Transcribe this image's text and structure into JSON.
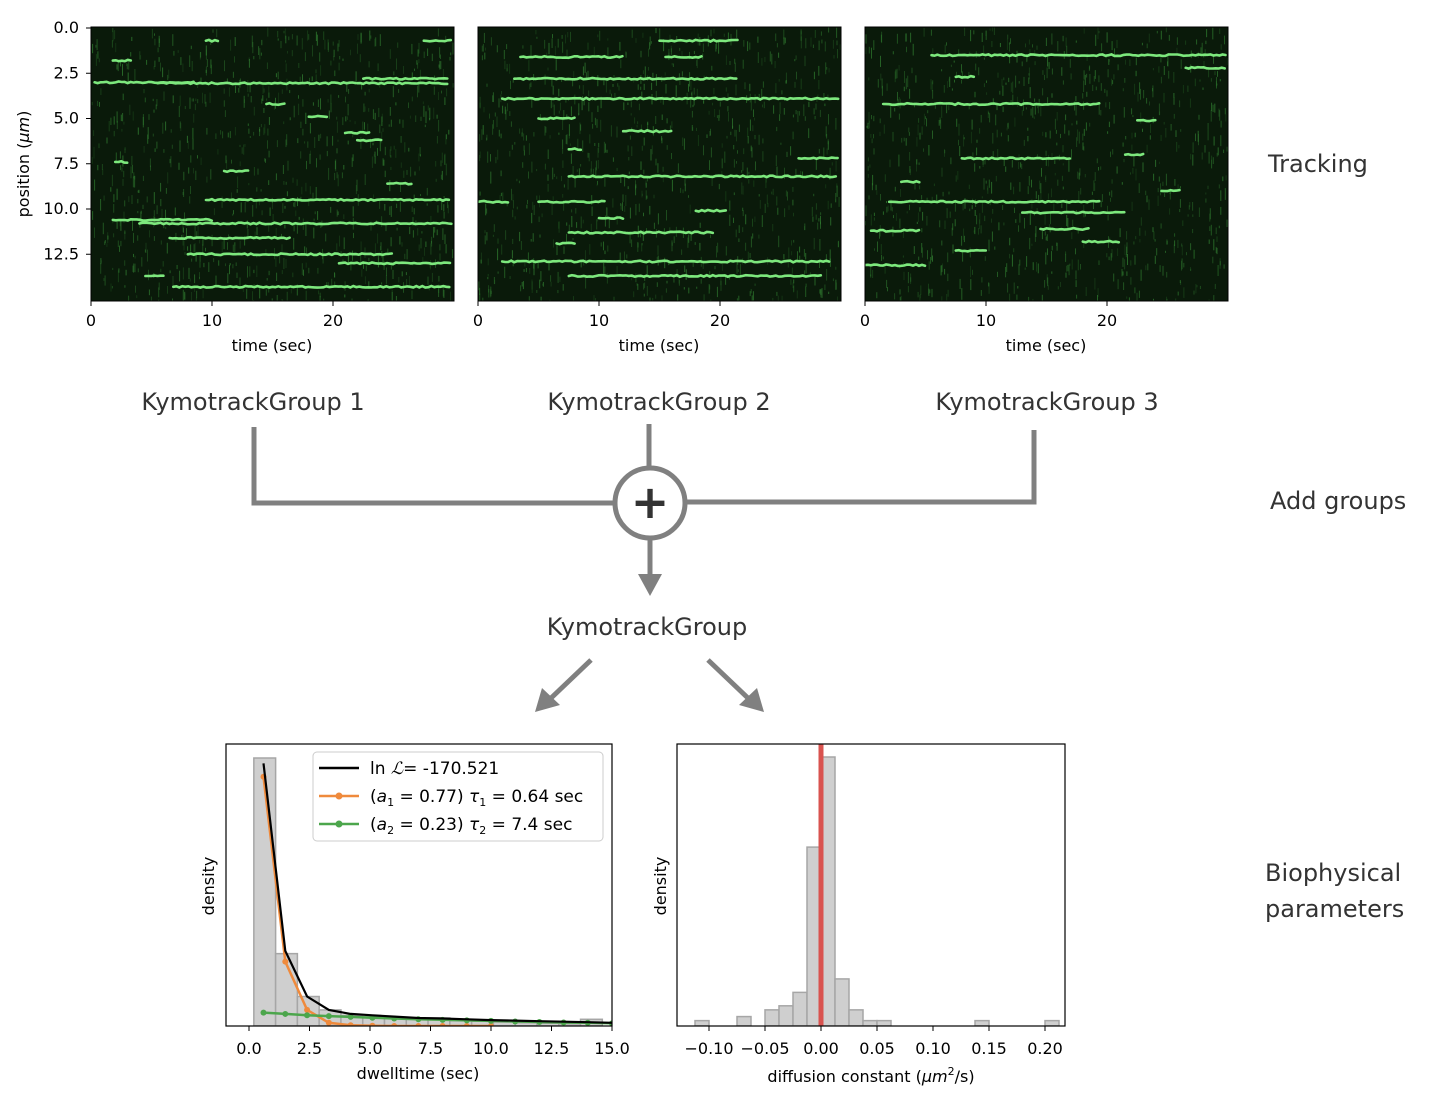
{
  "section_labels": {
    "tracking": "Tracking",
    "add_groups": "Add groups",
    "biophysical_line1": "Biophysical",
    "biophysical_line2": "parameters"
  },
  "groups": [
    "KymotrackGroup 1",
    "KymotrackGroup 2",
    "KymotrackGroup 3"
  ],
  "combined_label": "KymotrackGroup",
  "add_symbol": "+",
  "kymographs": {
    "ylabel_text": "position (",
    "ylabel_unit": "μm",
    "ylabel_close": ")",
    "xlabel": "time (sec)",
    "y_ticks": [
      "0.0",
      "2.5",
      "5.0",
      "7.5",
      "10.0",
      "12.5"
    ],
    "x_ticks": [
      "0",
      "10",
      "20"
    ],
    "time_range": [
      0,
      30
    ],
    "position_range": [
      0,
      15
    ],
    "colors": {
      "background": "#0a1a0a",
      "track": "#7de87d",
      "noise": "#2f7a2f"
    },
    "panels": [
      {
        "tracks": [
          {
            "t0": 0.3,
            "t1": 8.5,
            "y": 3.0
          },
          {
            "t0": 5.5,
            "t1": 22,
            "y": 3.05
          },
          {
            "t0": 22,
            "t1": 29.5,
            "y": 3.05
          },
          {
            "t0": 22.5,
            "t1": 29.5,
            "y": 2.8
          },
          {
            "t0": 27.5,
            "t1": 29.8,
            "y": 0.7
          },
          {
            "t0": 9.5,
            "t1": 29.8,
            "y": 9.5
          },
          {
            "t0": 1.8,
            "t1": 10,
            "y": 10.6
          },
          {
            "t0": 4,
            "t1": 29.8,
            "y": 10.8
          },
          {
            "t0": 6.5,
            "t1": 16.5,
            "y": 11.6
          },
          {
            "t0": 8,
            "t1": 25,
            "y": 12.5
          },
          {
            "t0": 20.5,
            "t1": 29.8,
            "y": 13.0
          },
          {
            "t0": 6.8,
            "t1": 29.8,
            "y": 14.3
          },
          {
            "t0": 1.8,
            "t1": 3.5,
            "y": 1.8
          },
          {
            "t0": 9.5,
            "t1": 10.5,
            "y": 0.7
          },
          {
            "t0": 18,
            "t1": 19.5,
            "y": 4.9
          },
          {
            "t0": 22,
            "t1": 24,
            "y": 6.2
          },
          {
            "t0": 2,
            "t1": 3,
            "y": 7.4
          },
          {
            "t0": 11,
            "t1": 13,
            "y": 7.9
          },
          {
            "t0": 24.5,
            "t1": 26.5,
            "y": 8.6
          },
          {
            "t0": 14.5,
            "t1": 16,
            "y": 4.2
          },
          {
            "t0": 21,
            "t1": 23,
            "y": 5.8
          },
          {
            "t0": 4.5,
            "t1": 6,
            "y": 13.7
          }
        ]
      },
      {
        "tracks": [
          {
            "t0": 3.5,
            "t1": 12,
            "y": 1.6
          },
          {
            "t0": 15.5,
            "t1": 18.5,
            "y": 1.6
          },
          {
            "t0": 15,
            "t1": 21.5,
            "y": 0.7
          },
          {
            "t0": 3,
            "t1": 21.5,
            "y": 2.8
          },
          {
            "t0": 2,
            "t1": 29.8,
            "y": 3.9
          },
          {
            "t0": 7.5,
            "t1": 29.8,
            "y": 8.2
          },
          {
            "t0": 5,
            "t1": 10.5,
            "y": 9.6
          },
          {
            "t0": 7.5,
            "t1": 19.5,
            "y": 11.3
          },
          {
            "t0": 2,
            "t1": 29.2,
            "y": 12.9
          },
          {
            "t0": 7.5,
            "t1": 28.5,
            "y": 13.7
          },
          {
            "t0": 18,
            "t1": 20.5,
            "y": 10.1
          },
          {
            "t0": 7.5,
            "t1": 8.5,
            "y": 6.7
          },
          {
            "t0": 12,
            "t1": 16,
            "y": 5.7
          },
          {
            "t0": 5,
            "t1": 8,
            "y": 5.0
          },
          {
            "t0": 26.5,
            "t1": 29.8,
            "y": 7.2
          },
          {
            "t0": 0,
            "t1": 2.5,
            "y": 9.6
          },
          {
            "t0": 10,
            "t1": 12,
            "y": 10.5
          },
          {
            "t0": 6.5,
            "t1": 8,
            "y": 11.9
          }
        ]
      },
      {
        "tracks": [
          {
            "t0": 5.5,
            "t1": 29.8,
            "y": 1.5
          },
          {
            "t0": 1.5,
            "t1": 19.5,
            "y": 4.2
          },
          {
            "t0": 8,
            "t1": 17,
            "y": 7.2
          },
          {
            "t0": 2,
            "t1": 19.5,
            "y": 9.6
          },
          {
            "t0": 13,
            "t1": 21.5,
            "y": 10.2
          },
          {
            "t0": 0,
            "t1": 5,
            "y": 13.1
          },
          {
            "t0": 0.5,
            "t1": 4.5,
            "y": 11.2
          },
          {
            "t0": 7.5,
            "t1": 10,
            "y": 12.3
          },
          {
            "t0": 14.5,
            "t1": 18.5,
            "y": 11.1
          },
          {
            "t0": 18,
            "t1": 21,
            "y": 11.8
          },
          {
            "t0": 7.5,
            "t1": 9,
            "y": 2.7
          },
          {
            "t0": 21.5,
            "t1": 23,
            "y": 7.0
          },
          {
            "t0": 26.5,
            "t1": 29.8,
            "y": 2.2
          },
          {
            "t0": 22.5,
            "t1": 24,
            "y": 5.1
          },
          {
            "t0": 3,
            "t1": 4.5,
            "y": 8.5
          },
          {
            "t0": 24.5,
            "t1": 26,
            "y": 9.0
          }
        ]
      }
    ]
  },
  "chart_data": [
    {
      "type": "histogram",
      "xlabel": "dwelltime (sec)",
      "ylabel": "density",
      "xlim": [
        -1,
        15
      ],
      "x_ticks": [
        "0.0",
        "2.5",
        "5.0",
        "7.5",
        "10.0",
        "12.5",
        "15.0"
      ],
      "bins": {
        "edges": [
          0.2,
          1.1,
          2.0,
          2.9,
          3.8,
          4.7,
          5.6,
          6.5,
          7.4,
          8.3,
          9.2,
          10.1,
          11.0,
          11.9,
          12.8,
          13.7,
          14.6
        ],
        "heights": [
          1.0,
          0.27,
          0.11,
          0.06,
          0.04,
          0.035,
          0.03,
          0.025,
          0.03,
          0.02,
          0.018,
          0.015,
          0.012,
          0.01,
          0.008,
          0.025
        ]
      },
      "series": [
        {
          "name": "ln ℒ= -170.521",
          "color": "#000000",
          "x": [
            0.6,
            1.5,
            2.4,
            3.3,
            4.2,
            5.1,
            6.0,
            7.0,
            8.0,
            9.0,
            10.0,
            11.0,
            12.0,
            13.0,
            14.0,
            15.0
          ],
          "y": [
            0.98,
            0.28,
            0.11,
            0.06,
            0.045,
            0.04,
            0.035,
            0.03,
            0.028,
            0.025,
            0.022,
            0.02,
            0.018,
            0.016,
            0.014,
            0.012
          ]
        },
        {
          "name": "(a₁ = 0.77) τ₁ = 0.64 sec",
          "color": "#ef8a3c",
          "marker": "circle",
          "x": [
            0.6,
            1.5,
            2.4,
            3.3,
            4.2,
            5.1,
            6.0,
            7.0,
            8.0,
            9.0,
            10.0
          ],
          "y": [
            0.93,
            0.24,
            0.06,
            0.012,
            0.003,
            0.001,
            0.0,
            0.0,
            0.0,
            0.0,
            0.0
          ]
        },
        {
          "name": "(a₂ = 0.23) τ₂ = 7.4 sec",
          "color": "#4ca64c",
          "marker": "circle",
          "x": [
            0.6,
            1.5,
            2.4,
            3.3,
            4.2,
            5.1,
            6.0,
            7.0,
            8.0,
            9.0,
            10.0,
            11.0,
            12.0,
            13.0,
            14.0,
            15.0
          ],
          "y": [
            0.05,
            0.045,
            0.04,
            0.037,
            0.034,
            0.031,
            0.028,
            0.025,
            0.023,
            0.021,
            0.019,
            0.017,
            0.015,
            0.013,
            0.012,
            0.01
          ]
        }
      ],
      "legend": {
        "placement": "upper right",
        "lnL_prefix": "ln ",
        "lnL_symbol": "ℒ",
        "lnL_value": "= -170.521",
        "comp1": {
          "a_val": " = 0.77) ",
          "tau_val": " = 0.64 sec"
        },
        "comp2": {
          "a_val": " = 0.23) ",
          "tau_val": " = 7.4 sec"
        }
      }
    },
    {
      "type": "histogram",
      "xlabel_prefix": "diffusion constant (",
      "xlabel_unit": "μm",
      "xlabel_suffix": "/s)",
      "ylabel": "density",
      "xlim": [
        -0.125,
        0.215
      ],
      "x_ticks": [
        "−0.10",
        "−0.05",
        "0.00",
        "0.05",
        "0.10",
        "0.15",
        "0.20"
      ],
      "vline": {
        "x": 0.0,
        "color": "#d9534f"
      },
      "bins": {
        "edges": [
          -0.1125,
          -0.1,
          -0.0875,
          -0.075,
          -0.0625,
          -0.05,
          -0.0375,
          -0.025,
          -0.0125,
          0.0,
          0.0125,
          0.025,
          0.0375,
          0.05,
          0.0625,
          0.075,
          0.0875,
          0.1,
          0.1125,
          0.125,
          0.1375,
          0.15,
          0.1625,
          0.175,
          0.1875,
          0.2,
          0.2125
        ],
        "heights": [
          0.02,
          0,
          0,
          0.035,
          0,
          0.06,
          0.075,
          0.125,
          0.665,
          1.0,
          0.175,
          0.06,
          0.02,
          0.02,
          0,
          0,
          0,
          0,
          0,
          0,
          0.02,
          0,
          0,
          0,
          0,
          0.02
        ]
      }
    }
  ],
  "colors": {
    "hist_fill": "#cfcfcf",
    "hist_edge": "#a6a6a6",
    "connector": "#808080",
    "big_label": "#333333"
  }
}
